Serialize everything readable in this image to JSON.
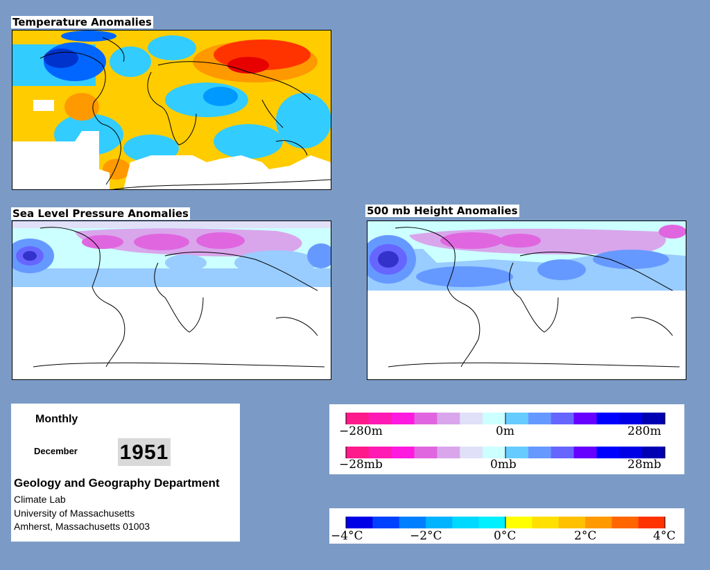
{
  "maps": {
    "temperature": {
      "title": "Temperature Anomalies"
    },
    "slp": {
      "title": "Sea Level Pressure Anomalies"
    },
    "height500": {
      "title": "500 mb Height Anomalies"
    }
  },
  "info": {
    "period": "Monthly",
    "month": "December",
    "year": "1951",
    "department": "Geology and Geography Department",
    "lab": "Climate Lab",
    "university": "University of Massachusetts",
    "city": "Amherst, Massachusetts 01003"
  },
  "legend_height": {
    "min": "−280m",
    "mid": "0m",
    "max": "280m"
  },
  "legend_pressure": {
    "min": "−28mb",
    "mid": "0mb",
    "max": "28mb"
  },
  "legend_temp": {
    "labels": [
      "−4°C",
      "−2°C",
      "0°C",
      "2°C",
      "4°C"
    ]
  },
  "colors": {
    "background": "#7b9bc6",
    "anomaly_scale": [
      "#ff1a8c",
      "#ff1ab3",
      "#ff1ae0",
      "#e066e0",
      "#d9a6ec",
      "#e0e0f8",
      "#ccffff",
      "#66ccff",
      "#6699ff",
      "#6666ff",
      "#6600ff",
      "#0000ff",
      "#0000e6",
      "#0000b3"
    ],
    "temp_scale": [
      "#0000e6",
      "#0066ff",
      "#00b3ff",
      "#00e6ff",
      "#ffff00",
      "#ffcc00",
      "#ff9900",
      "#ff3300"
    ]
  }
}
